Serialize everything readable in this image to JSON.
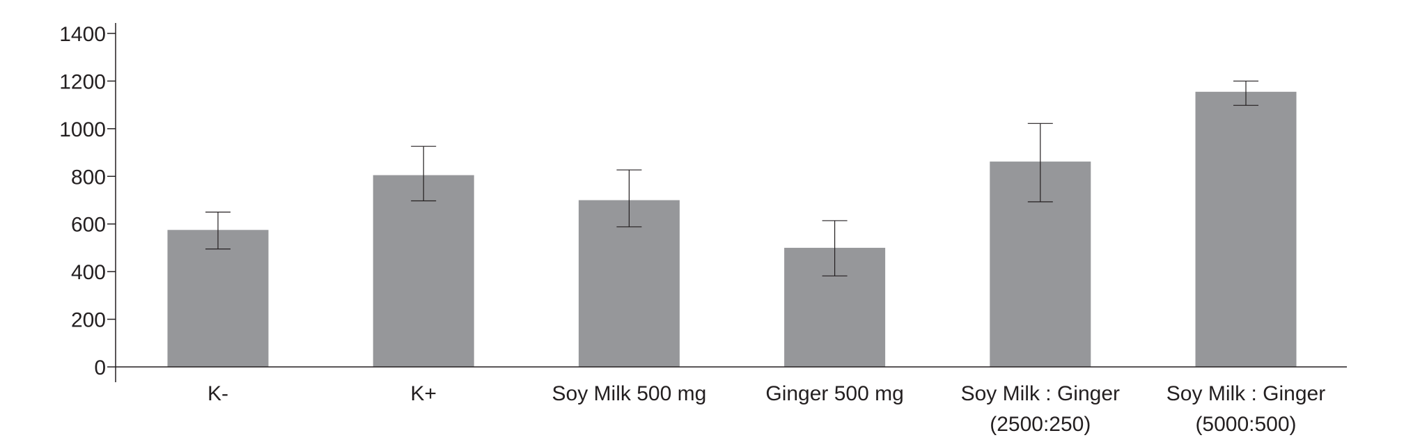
{
  "chart_data": {
    "type": "bar",
    "title": "",
    "xlabel": "",
    "ylabel": "",
    "ylim": [
      0,
      1400
    ],
    "yticks": [
      "0",
      "200",
      "400",
      "600",
      "800",
      "1000",
      "1200",
      "1400"
    ],
    "grid": false,
    "categories": [
      [
        "K-"
      ],
      [
        "K+"
      ],
      [
        "Soy Milk 500 mg"
      ],
      [
        "Ginger 500 mg"
      ],
      [
        "Soy Milk : Ginger",
        "(2500:250)"
      ],
      [
        "Soy Milk : Ginger",
        "(5000:500)"
      ]
    ],
    "values": [
      575,
      805,
      700,
      500,
      862,
      1155
    ],
    "error_low": [
      495,
      697,
      588,
      382,
      693,
      1098
    ],
    "error_high": [
      650,
      926,
      827,
      614,
      1022,
      1200
    ],
    "bar_color": "#96979a",
    "axis_color": "#231f20"
  }
}
